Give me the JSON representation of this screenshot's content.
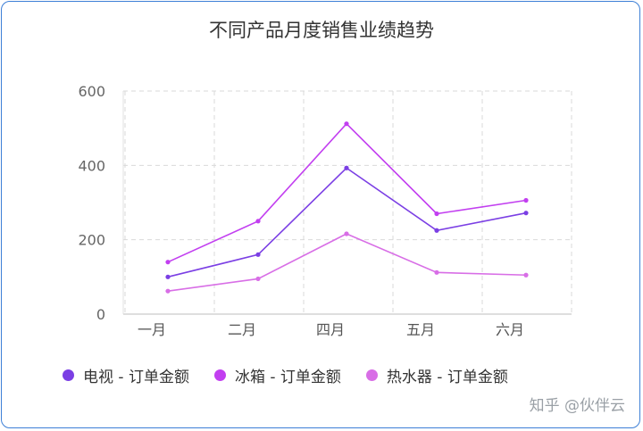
{
  "chart_data": {
    "type": "line",
    "title": "不同产品月度销售业绩趋势",
    "categories": [
      "一月",
      "二月",
      "四月",
      "五月",
      "六月"
    ],
    "ylim": [
      0,
      600
    ],
    "yticks": [
      0,
      200,
      400,
      600
    ],
    "grid": true,
    "legend_position": "bottom",
    "series": [
      {
        "name": "电视 - 订单金额",
        "color": "#7b3fe4",
        "values": [
          100,
          160,
          393,
          225,
          272
        ]
      },
      {
        "name": "冰箱 - 订单金额",
        "color": "#c23ff0",
        "values": [
          140,
          250,
          512,
          270,
          306
        ]
      },
      {
        "name": "热水器 - 订单金额",
        "color": "#d86ee6",
        "values": [
          62,
          95,
          216,
          112,
          105
        ]
      }
    ]
  },
  "watermark": "知乎 @伙伴云"
}
